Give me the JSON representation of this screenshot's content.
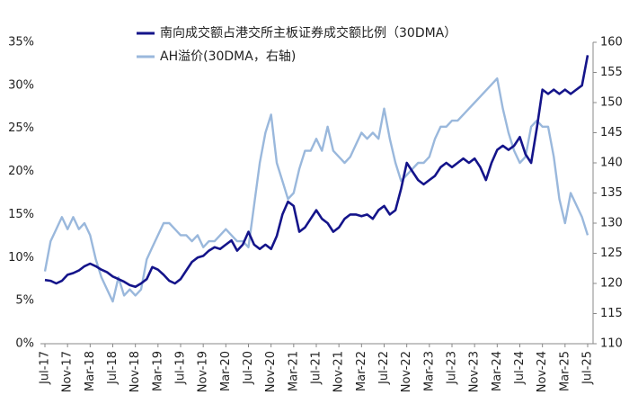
{
  "chart_data": {
    "type": "line",
    "categories": [
      "Jul-17",
      null,
      null,
      null,
      "Nov-17",
      null,
      null,
      null,
      "Mar-18",
      null,
      null,
      null,
      "Jul-18",
      null,
      null,
      null,
      "Nov-18",
      null,
      null,
      null,
      "Mar-19",
      null,
      null,
      null,
      "Jul-19",
      null,
      null,
      null,
      "Nov-19",
      null,
      null,
      null,
      "Mar-20",
      null,
      null,
      null,
      "Jul-20",
      null,
      null,
      null,
      "Nov-20",
      null,
      null,
      null,
      "Mar-21",
      null,
      null,
      null,
      "Jul-21",
      null,
      null,
      null,
      "Nov-21",
      null,
      null,
      null,
      "Mar-22",
      null,
      null,
      null,
      "Jul-22",
      null,
      null,
      null,
      "Nov-22",
      null,
      null,
      null,
      "Mar-23",
      null,
      null,
      null,
      "Jul-23",
      null,
      null,
      null,
      "Nov-23",
      null,
      null,
      null,
      "Mar-24",
      null,
      null,
      null,
      "Jul-24",
      null,
      null,
      null,
      "Nov-24",
      null,
      null,
      null,
      "Mar-25",
      null,
      null,
      null,
      "Jul-25"
    ],
    "series": [
      {
        "name": "南向成交额占港交所主板证券成交额比例（30DMA）",
        "color": "#14148a",
        "axis": "y",
        "values": [
          7.4,
          7.3,
          7.0,
          7.3,
          8.0,
          8.2,
          8.5,
          9.0,
          9.3,
          9.0,
          8.6,
          8.3,
          7.8,
          7.5,
          7.2,
          6.8,
          6.6,
          7.0,
          7.5,
          8.9,
          8.6,
          8.0,
          7.3,
          7.0,
          7.5,
          8.5,
          9.5,
          10.0,
          10.2,
          10.8,
          11.2,
          11.0,
          11.5,
          12.0,
          10.8,
          11.5,
          13.0,
          11.5,
          11.0,
          11.5,
          11.0,
          12.5,
          15.0,
          16.5,
          16.0,
          13.0,
          13.5,
          14.5,
          15.5,
          14.5,
          14.0,
          13.0,
          13.5,
          14.5,
          15.0,
          15.0,
          14.8,
          15.0,
          14.5,
          15.5,
          16.0,
          15.0,
          15.5,
          18.0,
          21.0,
          20.0,
          19.0,
          18.5,
          19.0,
          19.5,
          20.5,
          21.0,
          20.5,
          21.0,
          21.5,
          21.0,
          21.5,
          20.5,
          19.0,
          21.0,
          22.5,
          23.0,
          22.5,
          23.0,
          24.0,
          22.0,
          21.0,
          25.0,
          29.5,
          29.0,
          29.5,
          29.0,
          29.5,
          29.0,
          29.5,
          30.0,
          33.5
        ]
      },
      {
        "name": "AH溢价(30DMA，右轴)",
        "color": "#9ab8dc",
        "axis": "y2",
        "values": [
          122,
          127,
          129,
          131,
          129,
          131,
          129,
          130,
          128,
          124,
          121,
          119,
          117,
          121,
          118,
          119,
          118,
          119,
          124,
          126,
          128,
          130,
          130,
          129,
          128,
          128,
          127,
          128,
          126,
          127,
          127,
          128,
          129,
          128,
          127,
          127,
          126,
          133,
          140,
          145,
          148,
          140,
          137,
          134,
          135,
          139,
          142,
          142,
          144,
          142,
          146,
          142,
          141,
          140,
          141,
          143,
          145,
          144,
          145,
          144,
          149,
          144,
          140,
          137,
          138,
          139,
          140,
          140,
          141,
          144,
          146,
          146,
          147,
          147,
          148,
          149,
          150,
          151,
          152,
          153,
          154,
          149,
          145,
          142,
          140,
          141,
          146,
          147,
          146,
          146,
          141,
          134,
          130,
          135,
          133,
          131,
          128
        ]
      }
    ],
    "ylim": [
      0,
      35
    ],
    "yticks": [
      {
        "value": 0,
        "label": "0%"
      },
      {
        "value": 5,
        "label": "5%"
      },
      {
        "value": 10,
        "label": "10%"
      },
      {
        "value": 15,
        "label": "15%"
      },
      {
        "value": 20,
        "label": "20%"
      },
      {
        "value": 25,
        "label": "25%"
      },
      {
        "value": 30,
        "label": "30%"
      },
      {
        "value": 35,
        "label": "35%"
      }
    ],
    "y2lim": [
      110,
      160
    ],
    "y2ticks": [
      110,
      115,
      120,
      125,
      130,
      135,
      140,
      145,
      150,
      155,
      160
    ],
    "legend": "top"
  }
}
